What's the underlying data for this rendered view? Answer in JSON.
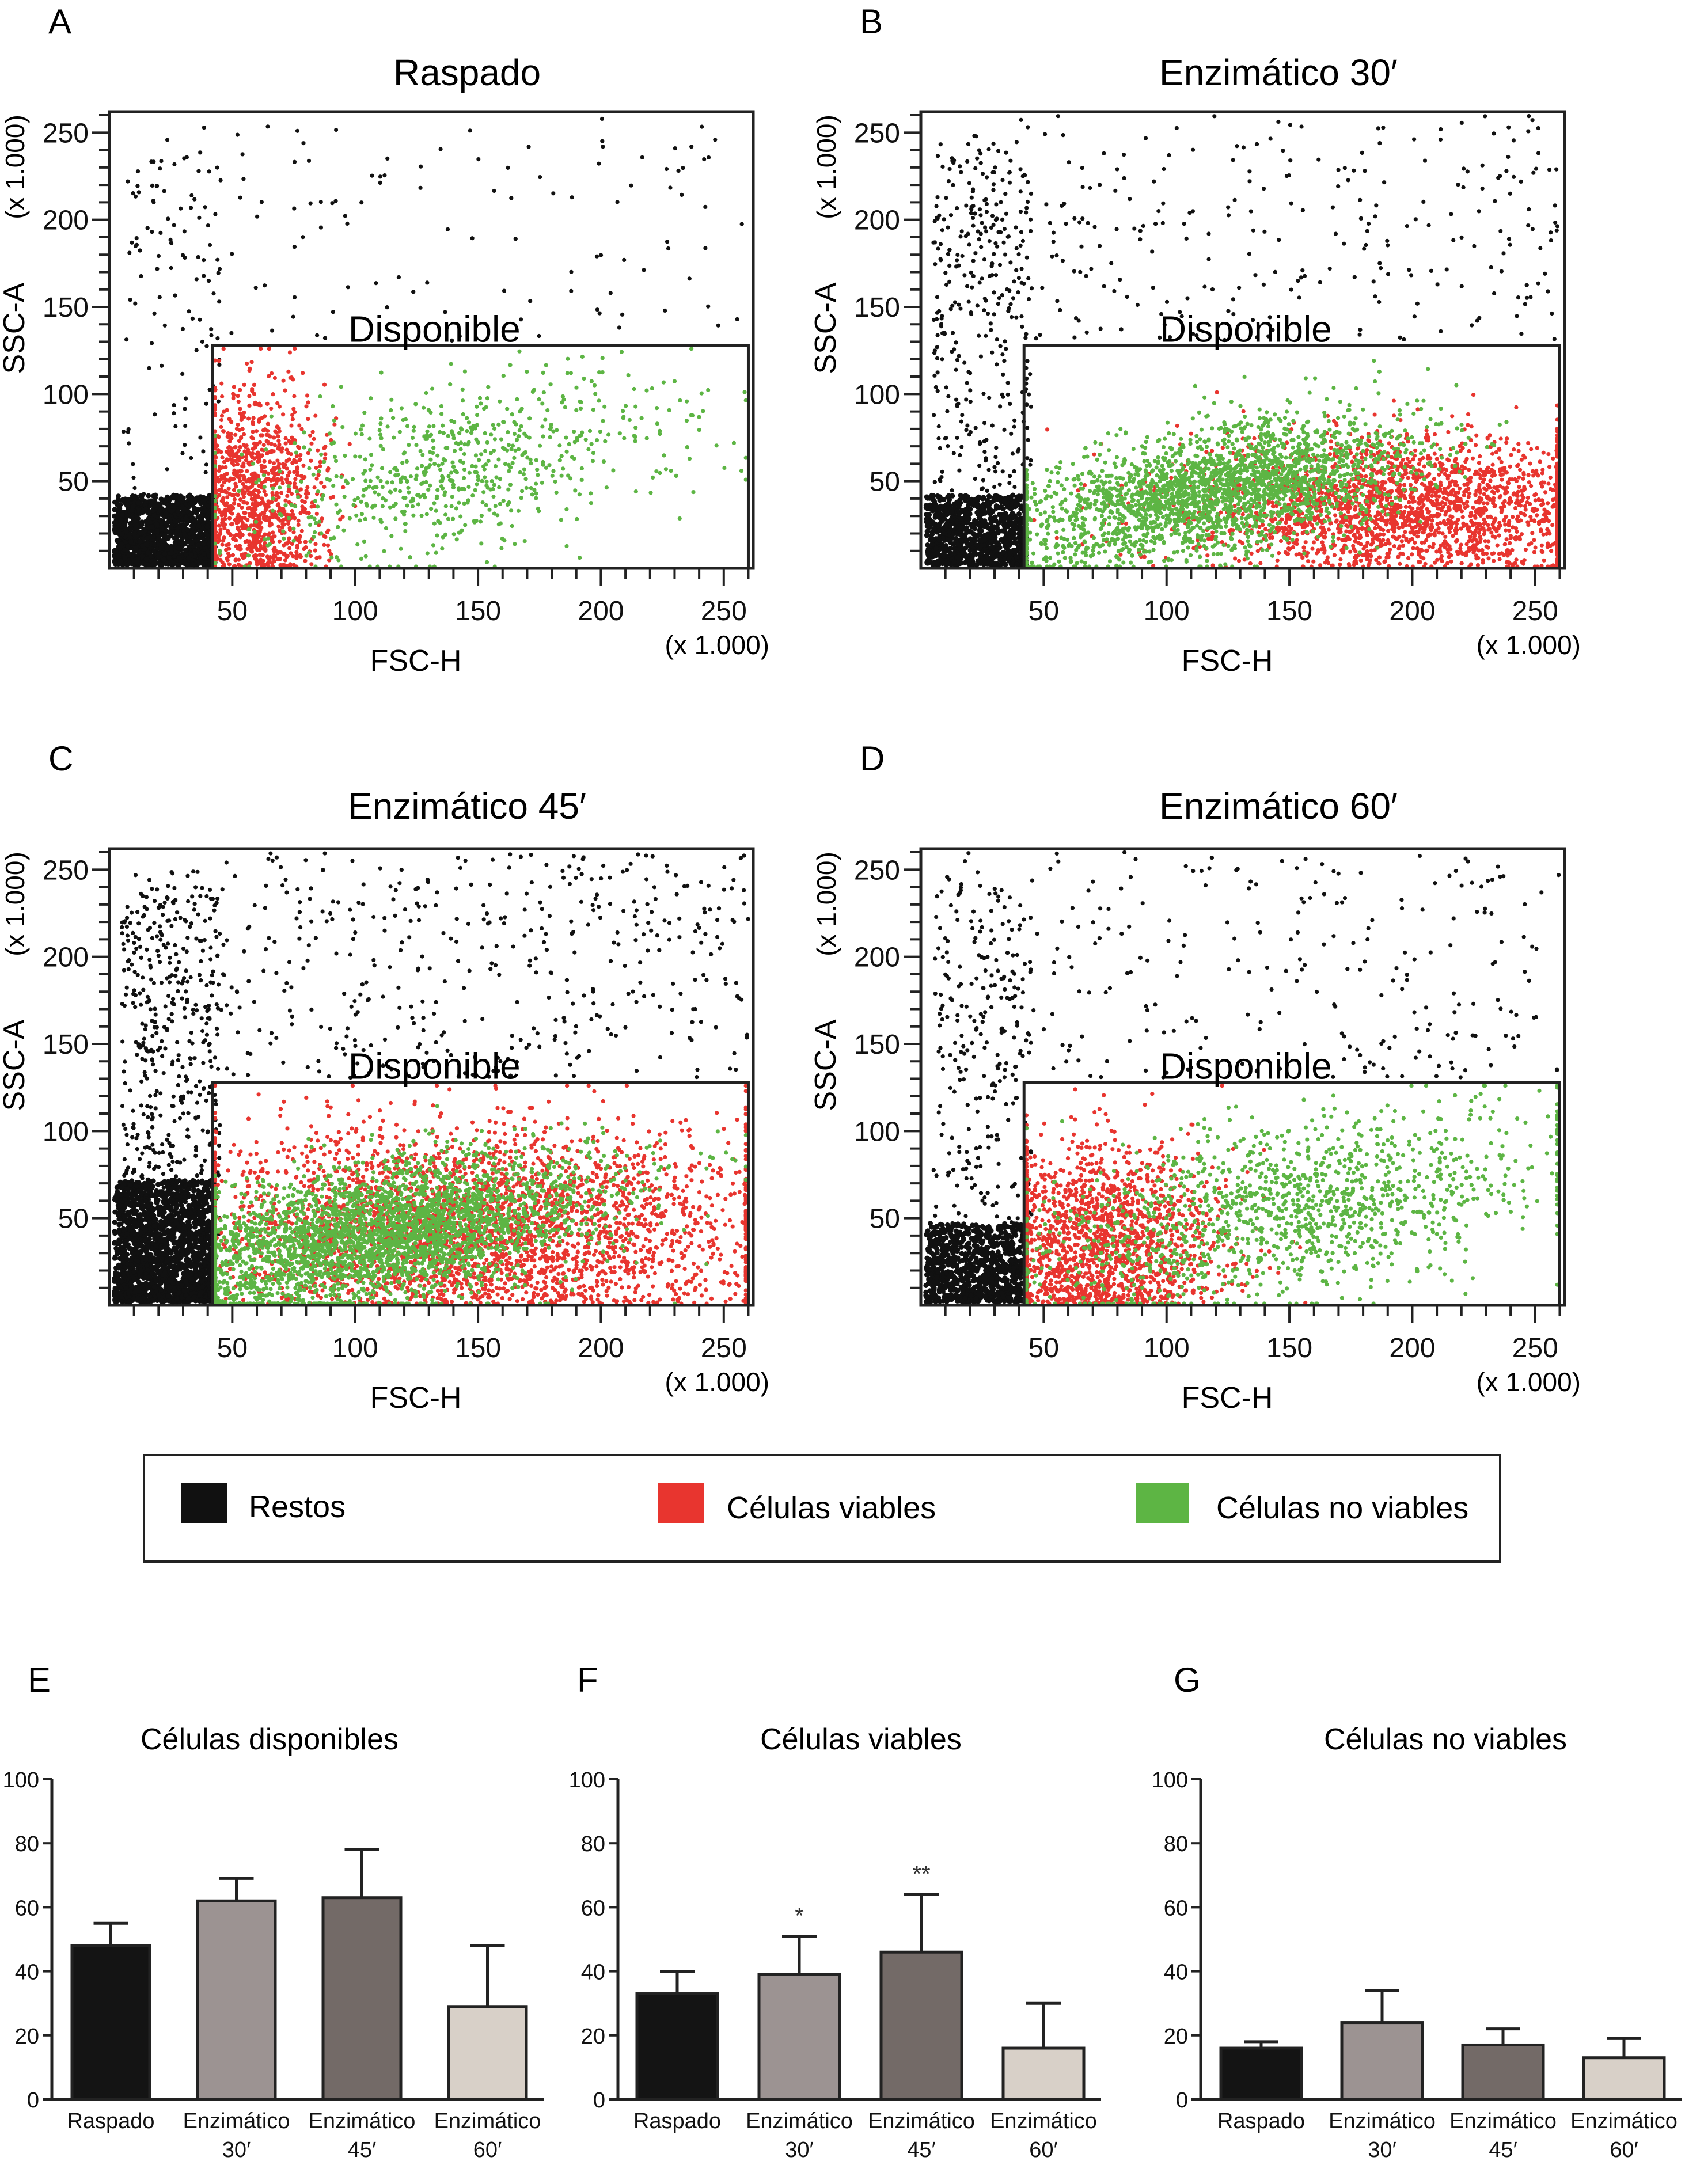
{
  "colors": {
    "restos": "#111111",
    "viables": "#e8352f",
    "no_viables": "#5db544",
    "axis": "#222222",
    "bar_raspado": "#141414",
    "bar_30": "#9c9392",
    "bar_45": "#736a67",
    "bar_60": "#d8d0c8"
  },
  "legend": {
    "items": [
      {
        "label": "Restos",
        "color": "#111111"
      },
      {
        "label": "Células viables",
        "color": "#e8352f"
      },
      {
        "label": "Células no viables",
        "color": "#5db544"
      }
    ]
  },
  "chart_data": [
    {
      "panel": "A",
      "type": "scatter",
      "title": "Raspado",
      "xlabel": "FSC-H",
      "ylabel": "SSC-A",
      "x_unit_label": "(x 1.000)",
      "y_unit_label": "(x 1.000)",
      "xlim": [
        0,
        262
      ],
      "ylim": [
        0,
        262
      ],
      "xticks": [
        "50",
        "100",
        "150",
        "200",
        "250"
      ],
      "xtick_values": [
        50,
        100,
        150,
        200,
        250
      ],
      "yticks": [
        "50",
        "100",
        "150",
        "200",
        "250"
      ],
      "ytick_values": [
        50,
        100,
        150,
        200,
        250
      ],
      "gate": {
        "label": "Disponible",
        "x": [
          42,
          260
        ],
        "y": [
          0,
          128
        ]
      },
      "clusters": {
        "restos": {
          "dense_x": [
            0,
            42
          ],
          "dense_y": [
            0,
            40
          ],
          "dense_n": 1400,
          "sparse_n": 220
        },
        "viables": {
          "center": [
            58,
            42
          ],
          "spread": [
            14,
            30
          ],
          "n": 1100
        },
        "no_viables": {
          "center": [
            140,
            58
          ],
          "spread": [
            45,
            25
          ],
          "n": 700
        }
      }
    },
    {
      "panel": "B",
      "type": "scatter",
      "title": "Enzimático 30′",
      "xlabel": "FSC-H",
      "ylabel": "SSC-A",
      "x_unit_label": "(x 1.000)",
      "y_unit_label": "(x 1.000)",
      "xlim": [
        0,
        262
      ],
      "ylim": [
        0,
        262
      ],
      "xticks": [
        "50",
        "100",
        "150",
        "200",
        "250"
      ],
      "xtick_values": [
        50,
        100,
        150,
        200,
        250
      ],
      "yticks": [
        "50",
        "100",
        "150",
        "200",
        "250"
      ],
      "ytick_values": [
        50,
        100,
        150,
        200,
        250
      ],
      "gate": {
        "label": "Disponible",
        "x": [
          42,
          260
        ],
        "y": [
          0,
          128
        ]
      },
      "clusters": {
        "restos": {
          "dense_x": [
            0,
            42
          ],
          "dense_y": [
            0,
            40
          ],
          "dense_n": 900,
          "sparse_n": 600
        },
        "viables": {
          "center": [
            200,
            35
          ],
          "spread": [
            45,
            20
          ],
          "n": 2200
        },
        "no_viables": {
          "center": [
            120,
            45
          ],
          "spread": [
            40,
            18
          ],
          "n": 2400
        }
      }
    },
    {
      "panel": "C",
      "type": "scatter",
      "title": "Enzimático 45′",
      "xlabel": "FSC-H",
      "ylabel": "SSC-A",
      "x_unit_label": "(x 1.000)",
      "y_unit_label": "(x 1.000)",
      "xlim": [
        0,
        262
      ],
      "ylim": [
        0,
        262
      ],
      "xticks": [
        "50",
        "100",
        "150",
        "200",
        "250"
      ],
      "xtick_values": [
        50,
        100,
        150,
        200,
        250
      ],
      "yticks": [
        "50",
        "100",
        "150",
        "200",
        "250"
      ],
      "ytick_values": [
        50,
        100,
        150,
        200,
        250
      ],
      "gate": {
        "label": "Disponible",
        "x": [
          42,
          260
        ],
        "y": [
          0,
          128
        ]
      },
      "clusters": {
        "restos": {
          "dense_x": [
            0,
            42
          ],
          "dense_y": [
            0,
            70
          ],
          "dense_n": 1800,
          "sparse_n": 900
        },
        "viables": {
          "center": [
            150,
            45
          ],
          "spread": [
            60,
            30
          ],
          "n": 3000
        },
        "no_viables": {
          "center": [
            110,
            40
          ],
          "spread": [
            45,
            20
          ],
          "n": 3200
        }
      }
    },
    {
      "panel": "D",
      "type": "scatter",
      "title": "Enzimático 60′",
      "xlabel": "FSC-H",
      "ylabel": "SSC-A",
      "x_unit_label": "(x 1.000)",
      "y_unit_label": "(x 1.000)",
      "xlim": [
        0,
        262
      ],
      "ylim": [
        0,
        262
      ],
      "xticks": [
        "50",
        "100",
        "150",
        "200",
        "250"
      ],
      "xtick_values": [
        50,
        100,
        150,
        200,
        250
      ],
      "yticks": [
        "50",
        "100",
        "150",
        "200",
        "250"
      ],
      "ytick_values": [
        50,
        100,
        150,
        200,
        250
      ],
      "gate": {
        "label": "Disponible",
        "x": [
          42,
          260
        ],
        "y": [
          0,
          128
        ]
      },
      "clusters": {
        "restos": {
          "dense_x": [
            0,
            42
          ],
          "dense_y": [
            0,
            45
          ],
          "dense_n": 900,
          "sparse_n": 500
        },
        "viables": {
          "center": [
            70,
            35
          ],
          "spread": [
            25,
            30
          ],
          "n": 1600
        },
        "no_viables": {
          "center": [
            150,
            55
          ],
          "spread": [
            55,
            25
          ],
          "n": 1300
        }
      }
    },
    {
      "panel": "E",
      "type": "bar",
      "title": "Células disponibles",
      "categories": [
        "Raspado",
        "Enzimático 30′",
        "Enzimático 45′",
        "Enzimático 60′"
      ],
      "category_lines": [
        [
          "Raspado",
          ""
        ],
        [
          "Enzimático",
          "30′"
        ],
        [
          "Enzimático",
          "45′"
        ],
        [
          "Enzimático",
          "60′"
        ]
      ],
      "values": [
        48,
        62,
        63,
        29
      ],
      "errors": [
        7,
        7,
        15,
        19
      ],
      "annotations": [
        "",
        "",
        "",
        ""
      ],
      "ylim": [
        0,
        100
      ],
      "yticks": [
        0,
        20,
        40,
        60,
        80,
        100
      ]
    },
    {
      "panel": "F",
      "type": "bar",
      "title": "Células viables",
      "categories": [
        "Raspado",
        "Enzimático 30′",
        "Enzimático 45′",
        "Enzimático 60′"
      ],
      "category_lines": [
        [
          "Raspado",
          ""
        ],
        [
          "Enzimático",
          "30′"
        ],
        [
          "Enzimático",
          "45′"
        ],
        [
          "Enzimático",
          "60′"
        ]
      ],
      "values": [
        33,
        39,
        46,
        16
      ],
      "errors": [
        7,
        12,
        18,
        14
      ],
      "annotations": [
        "",
        "*",
        "**",
        ""
      ],
      "ylim": [
        0,
        100
      ],
      "yticks": [
        0,
        20,
        40,
        60,
        80,
        100
      ]
    },
    {
      "panel": "G",
      "type": "bar",
      "title": "Células no viables",
      "categories": [
        "Raspado",
        "Enzimático 30′",
        "Enzimático 45′",
        "Enzimático 60′"
      ],
      "category_lines": [
        [
          "Raspado",
          ""
        ],
        [
          "Enzimático",
          "30′"
        ],
        [
          "Enzimático",
          "45′"
        ],
        [
          "Enzimático",
          "60′"
        ]
      ],
      "values": [
        16,
        24,
        17,
        13
      ],
      "errors": [
        2,
        10,
        5,
        6
      ],
      "annotations": [
        "",
        "",
        "",
        ""
      ],
      "ylim": [
        0,
        100
      ],
      "yticks": [
        0,
        20,
        40,
        60,
        80,
        100
      ]
    }
  ]
}
